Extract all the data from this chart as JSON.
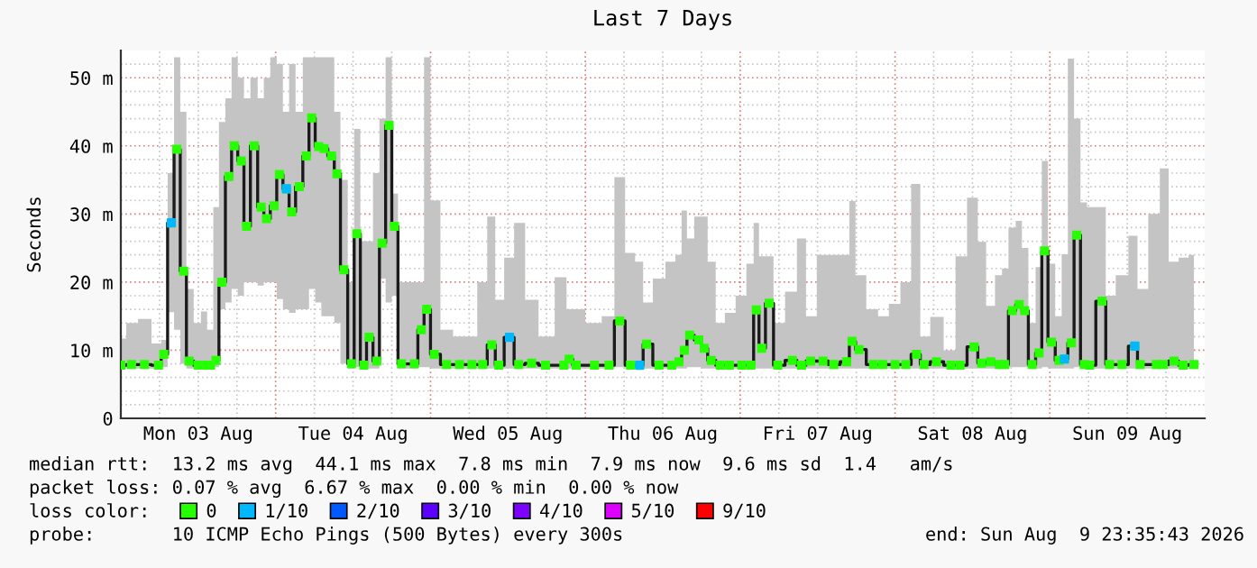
{
  "chart_data": {
    "type": "step",
    "title": "Last 7 Days",
    "ylabel": "Seconds",
    "x": [
      "2026-08-03T00:00",
      "2026-08-03T01:40",
      "2026-08-03T03:40",
      "2026-08-03T05:50",
      "2026-08-03T06:40",
      "2026-08-03T07:50",
      "2026-08-03T08:40",
      "2026-08-03T09:45",
      "2026-08-03T10:35",
      "2026-08-03T12:00",
      "2026-08-03T12:50",
      "2026-08-03T13:55",
      "2026-08-03T14:45",
      "2026-08-03T15:40",
      "2026-08-03T16:45",
      "2026-08-03T17:35",
      "2026-08-03T18:40",
      "2026-08-03T19:30",
      "2026-08-03T20:40",
      "2026-08-03T21:45",
      "2026-08-03T22:35",
      "2026-08-03T23:45",
      "2026-08-04T00:35",
      "2026-08-04T01:40",
      "2026-08-04T02:30",
      "2026-08-04T03:40",
      "2026-08-04T04:45",
      "2026-08-04T05:35",
      "2026-08-04T06:40",
      "2026-08-04T07:30",
      "2026-08-04T08:40",
      "2026-08-04T09:30",
      "2026-08-04T10:35",
      "2026-08-04T11:45",
      "2026-08-04T12:35",
      "2026-08-04T13:40",
      "2026-08-04T14:30",
      "2026-08-04T15:40",
      "2026-08-04T16:30",
      "2026-08-04T17:35",
      "2026-08-04T18:25",
      "2026-08-04T19:30",
      "2026-08-04T21:30",
      "2026-08-04T22:35",
      "2026-08-04T23:25",
      "2026-08-05T00:35",
      "2026-08-05T02:30",
      "2026-08-05T04:30",
      "2026-08-05T06:25",
      "2026-08-05T08:05",
      "2026-08-05T09:30",
      "2026-08-05T10:35",
      "2026-08-05T12:15",
      "2026-08-05T13:40",
      "2026-08-05T15:40",
      "2026-08-05T17:50",
      "2026-08-05T20:40",
      "2026-08-05T21:30",
      "2026-08-05T22:35",
      "2026-08-06T01:25",
      "2026-08-06T03:40",
      "2026-08-06T05:20",
      "2026-08-06T07:00",
      "2026-08-06T08:25",
      "2026-08-06T09:30",
      "2026-08-06T11:25",
      "2026-08-06T13:25",
      "2026-08-06T14:30",
      "2026-08-06T15:20",
      "2026-08-06T16:10",
      "2026-08-06T17:35",
      "2026-08-06T18:25",
      "2026-08-06T19:30",
      "2026-08-06T20:55",
      "2026-08-06T22:20",
      "2026-08-07T00:15",
      "2026-08-07T01:40",
      "2026-08-07T02:30",
      "2026-08-07T03:20",
      "2026-08-07T04:30",
      "2026-08-07T05:50",
      "2026-08-07T08:05",
      "2026-08-07T09:30",
      "2026-08-07T10:55",
      "2026-08-07T12:50",
      "2026-08-07T14:30",
      "2026-08-07T16:30",
      "2026-08-07T17:20",
      "2026-08-07T18:25",
      "2026-08-07T20:40",
      "2026-08-07T22:05",
      "2026-08-08T00:00",
      "2026-08-08T01:40",
      "2026-08-08T03:20",
      "2026-08-08T04:30",
      "2026-08-08T06:25",
      "2026-08-08T08:40",
      "2026-08-08T10:05",
      "2026-08-08T12:15",
      "2026-08-08T13:25",
      "2026-08-08T14:50",
      "2026-08-08T16:10",
      "2026-08-08T17:00",
      "2026-08-08T18:10",
      "2026-08-08T19:15",
      "2026-08-08T20:05",
      "2026-08-08T21:15",
      "2026-08-08T22:20",
      "2026-08-08T23:10",
      "2026-08-09T00:15",
      "2026-08-09T01:25",
      "2026-08-09T02:15",
      "2026-08-09T03:20",
      "2026-08-09T04:10",
      "2026-08-09T05:20",
      "2026-08-09T06:10",
      "2026-08-09T08:05",
      "2026-08-09T09:15",
      "2026-08-09T11:10",
      "2026-08-09T13:10",
      "2026-08-09T14:00",
      "2026-08-09T16:30",
      "2026-08-09T17:35",
      "2026-08-09T19:15",
      "2026-08-09T20:40",
      "2026-08-09T22:20"
    ],
    "series": [
      {
        "name": "0",
        "color": "#26ff00",
        "values": [
          7.8,
          7.9,
          7.9,
          7.8,
          9.4,
          28.7,
          39.5,
          21.6,
          8.4,
          7.8,
          7.8,
          7.8,
          8.5,
          20,
          35.5,
          40,
          37.8,
          28.2,
          40,
          31,
          29.3,
          31.2,
          35.8,
          33.7,
          30.3,
          34,
          38.5,
          44.1,
          39.9,
          39.6,
          38.5,
          35.9,
          21.8,
          8,
          27.1,
          7.8,
          11.9,
          8.4,
          25.7,
          43,
          28.2,
          8,
          8,
          13,
          16,
          9.4,
          7.9,
          7.9,
          7.9,
          7.9,
          10.8,
          7.8,
          11.9,
          7.9,
          8.1,
          7.8,
          7.8,
          8.7,
          7.8,
          7.8,
          7.8,
          14.3,
          7.8,
          7.8,
          10.9,
          7.8,
          7.8,
          8.3,
          10,
          12.2,
          11.5,
          10.3,
          8.5,
          7.8,
          7.8,
          7.8,
          7.8,
          15.9,
          10.3,
          16.9,
          7.8,
          8.5,
          7.8,
          8.4,
          8.4,
          7.9,
          8.3,
          11.3,
          10.1,
          7.9,
          7.9,
          7.9,
          7.9,
          9.4,
          7.9,
          8.3,
          7.8,
          7.8,
          10.5,
          8.1,
          8.3,
          7.9,
          7.9,
          15.8,
          16.7,
          15.8,
          7.9,
          9.6,
          24.6,
          11.2,
          8.5,
          8.7,
          11.1,
          26.9,
          7.9,
          7.8,
          17.2,
          7.9,
          7.9,
          10.6,
          7.9,
          7.9,
          7.9,
          8.4,
          7.8,
          7.9
        ],
        "lower": [
          7.3,
          7.3,
          7.3,
          7.3,
          7.5,
          15.6,
          13,
          8,
          7.3,
          7.3,
          7.3,
          7.3,
          7.5,
          16,
          17,
          19,
          18,
          20,
          20,
          19.5,
          20,
          20,
          17.5,
          16,
          15.5,
          16,
          16,
          19,
          17,
          15,
          15,
          14,
          8,
          7.3,
          7.5,
          7.3,
          7.3,
          7.3,
          20.5,
          17,
          18,
          7.3,
          7.3,
          7.5,
          7.5,
          7.3,
          7.3,
          7.3,
          7.3,
          7.3,
          7.3,
          7.3,
          7.3,
          7.3,
          7.3,
          7.3,
          7.3,
          7.3,
          7.3,
          7.3,
          7.3,
          7.5,
          7.3,
          7.3,
          7.3,
          7.3,
          7.3,
          7.3,
          7.3,
          7.5,
          7.5,
          7.3,
          7.3,
          7.3,
          7.3,
          7.3,
          7.3,
          7.3,
          7.3,
          7.3,
          7.3,
          7.3,
          7.3,
          7.3,
          7.3,
          7.3,
          7.3,
          7.3,
          7.3,
          7.3,
          7.3,
          7.3,
          7.3,
          7.3,
          7.3,
          7.3,
          7.3,
          7.3,
          7.3,
          7.3,
          7.3,
          7.3,
          7.3,
          7.5,
          7.5,
          7.5,
          7.3,
          7.3,
          7.5,
          7.3,
          7.3,
          7.3,
          7.3,
          7.5,
          7.3,
          7.3,
          7.3,
          7.3,
          7.3,
          7.3,
          7.3,
          7.3,
          7.3,
          7.3,
          7.3,
          7.3
        ],
        "upper": [
          11.7,
          14,
          14.6,
          11,
          11.5,
          36,
          53,
          45,
          19,
          14,
          15.7,
          13,
          31,
          43.5,
          47,
          53,
          50,
          47,
          50,
          47,
          50,
          53,
          52,
          45,
          52,
          45,
          53,
          53,
          53,
          53,
          53,
          45,
          35,
          20,
          42.5,
          26,
          26,
          36,
          44,
          53,
          33,
          20,
          20,
          20,
          53,
          32,
          13,
          12,
          12,
          20,
          29.6,
          17.4,
          23.6,
          28.7,
          17.4,
          12,
          20.7,
          16,
          16,
          14,
          15,
          35.4,
          24.3,
          23,
          17,
          20.5,
          23,
          24,
          30.5,
          26.4,
          29.6,
          29.6,
          23,
          14,
          15.5,
          18,
          22.7,
          28.7,
          23.8,
          23.8,
          14,
          18.6,
          26.4,
          15,
          24,
          24,
          24,
          31.9,
          21,
          16,
          15,
          16.8,
          20,
          34.4,
          12,
          14.9,
          10,
          23.8,
          32.4,
          25.9,
          16.5,
          21,
          22,
          28,
          29,
          25,
          14,
          22.2,
          37.8,
          22.7,
          15,
          24.1,
          52.8,
          44,
          31.7,
          31,
          31,
          18,
          21,
          26.8,
          19,
          30,
          36.7,
          23,
          23.6,
          24
        ]
      },
      {
        "name": "1/10",
        "type": "scatter",
        "color": "#00b8ff",
        "x": [
          "2026-08-03T07:50",
          "2026-08-04T01:40",
          "2026-08-05T12:15",
          "2026-08-06T08:25",
          "2026-08-09T02:15",
          "2026-08-09T13:10"
        ],
        "values": [
          28.7,
          33.7,
          11.9,
          7.8,
          8.7,
          10.6
        ]
      },
      {
        "name": "2/10",
        "type": "scatter",
        "color": "#0059ff",
        "values": [
          null,
          null,
          null,
          null,
          null,
          null,
          null,
          null,
          null,
          null,
          null,
          null,
          null,
          null,
          null,
          null,
          null,
          null,
          null,
          null,
          null,
          null,
          null,
          null,
          null,
          null,
          null,
          null,
          null,
          null,
          null,
          null,
          null,
          null,
          null,
          null,
          null,
          null,
          null,
          null,
          null,
          null,
          null,
          null,
          null,
          null,
          null,
          null,
          null,
          null,
          null,
          null,
          null,
          null,
          null,
          null,
          null,
          null,
          null,
          null,
          null,
          null,
          null,
          null,
          null,
          null,
          null,
          null,
          null,
          null,
          null,
          null,
          null,
          null,
          null,
          null,
          null,
          null,
          null,
          null,
          null,
          null,
          null,
          null,
          null,
          null,
          null,
          null,
          null,
          null,
          null,
          null,
          null,
          null,
          null,
          null,
          null,
          null,
          null,
          null,
          null,
          null,
          null,
          null,
          null,
          null,
          null,
          null,
          null,
          null,
          null,
          null,
          null,
          null,
          null,
          null,
          null,
          null,
          null,
          null,
          null,
          null,
          null,
          null,
          null,
          null
        ]
      },
      {
        "name": "3/10",
        "type": "scatter",
        "color": "#5e00ff",
        "values": [
          null,
          null,
          null,
          null,
          null,
          null,
          null,
          null,
          null,
          null,
          null,
          null,
          null,
          null,
          null,
          null,
          null,
          null,
          null,
          null,
          null,
          null,
          null,
          null,
          null,
          null,
          null,
          null,
          null,
          null,
          null,
          null,
          null,
          null,
          null,
          null,
          null,
          null,
          null,
          null,
          null,
          null,
          null,
          null,
          null,
          null,
          null,
          null,
          null,
          null,
          null,
          null,
          null,
          null,
          null,
          null,
          null,
          null,
          null,
          null,
          null,
          null,
          null,
          null,
          null,
          null,
          null,
          null,
          null,
          null,
          null,
          null,
          null,
          null,
          null,
          null,
          null,
          null,
          null,
          null,
          null,
          null,
          null,
          null,
          null,
          null,
          null,
          null,
          null,
          null,
          null,
          null,
          null,
          null,
          null,
          null,
          null,
          null,
          null,
          null,
          null,
          null,
          null,
          null,
          null,
          null,
          null,
          null,
          null,
          null,
          null,
          null,
          null,
          null,
          null,
          null,
          null,
          null,
          null,
          null,
          null,
          null,
          null,
          null,
          null,
          null
        ]
      },
      {
        "name": "4/10",
        "type": "scatter",
        "color": "#7e00ff",
        "values": [
          null,
          null,
          null,
          null,
          null,
          null,
          null,
          null,
          null,
          null,
          null,
          null,
          null,
          null,
          null,
          null,
          null,
          null,
          null,
          null,
          null,
          null,
          null,
          null,
          null,
          null,
          null,
          null,
          null,
          null,
          null,
          null,
          null,
          null,
          null,
          null,
          null,
          null,
          null,
          null,
          null,
          null,
          null,
          null,
          null,
          null,
          null,
          null,
          null,
          null,
          null,
          null,
          null,
          null,
          null,
          null,
          null,
          null,
          null,
          null,
          null,
          null,
          null,
          null,
          null,
          null,
          null,
          null,
          null,
          null,
          null,
          null,
          null,
          null,
          null,
          null,
          null,
          null,
          null,
          null,
          null,
          null,
          null,
          null,
          null,
          null,
          null,
          null,
          null,
          null,
          null,
          null,
          null,
          null,
          null,
          null,
          null,
          null,
          null,
          null,
          null,
          null,
          null,
          null,
          null,
          null,
          null,
          null,
          null,
          null,
          null,
          null,
          null,
          null,
          null,
          null,
          null,
          null,
          null,
          null,
          null,
          null,
          null,
          null,
          null,
          null
        ]
      },
      {
        "name": "5/10",
        "type": "scatter",
        "color": "#dd00ff",
        "values": [
          null,
          null,
          null,
          null,
          null,
          null,
          null,
          null,
          null,
          null,
          null,
          null,
          null,
          null,
          null,
          null,
          null,
          null,
          null,
          null,
          null,
          null,
          null,
          null,
          null,
          null,
          null,
          null,
          null,
          null,
          null,
          null,
          null,
          null,
          null,
          null,
          null,
          null,
          null,
          null,
          null,
          null,
          null,
          null,
          null,
          null,
          null,
          null,
          null,
          null,
          null,
          null,
          null,
          null,
          null,
          null,
          null,
          null,
          null,
          null,
          null,
          null,
          null,
          null,
          null,
          null,
          null,
          null,
          null,
          null,
          null,
          null,
          null,
          null,
          null,
          null,
          null,
          null,
          null,
          null,
          null,
          null,
          null,
          null,
          null,
          null,
          null,
          null,
          null,
          null,
          null,
          null,
          null,
          null,
          null,
          null,
          null,
          null,
          null,
          null,
          null,
          null,
          null,
          null,
          null,
          null,
          null,
          null,
          null,
          null,
          null,
          null,
          null,
          null,
          null,
          null,
          null,
          null,
          null,
          null,
          null,
          null,
          null,
          null,
          null,
          null
        ]
      },
      {
        "name": "9/10",
        "type": "scatter",
        "color": "#ff0000",
        "values": [
          null,
          null,
          null,
          null,
          null,
          null,
          null,
          null,
          null,
          null,
          null,
          null,
          null,
          null,
          null,
          null,
          null,
          null,
          null,
          null,
          null,
          null,
          null,
          null,
          null,
          null,
          null,
          null,
          null,
          null,
          null,
          null,
          null,
          null,
          null,
          null,
          null,
          null,
          null,
          null,
          null,
          null,
          null,
          null,
          null,
          null,
          null,
          null,
          null,
          null,
          null,
          null,
          null,
          null,
          null,
          null,
          null,
          null,
          null,
          null,
          null,
          null,
          null,
          null,
          null,
          null,
          null,
          null,
          null,
          null,
          null,
          null,
          null,
          null,
          null,
          null,
          null,
          null,
          null,
          null,
          null,
          null,
          null,
          null,
          null,
          null,
          null,
          null,
          null,
          null,
          null,
          null,
          null,
          null,
          null,
          null,
          null,
          null,
          null,
          null,
          null,
          null,
          null,
          null,
          null,
          null,
          null,
          null,
          null,
          null,
          null,
          null,
          null,
          null,
          null,
          null,
          null,
          null,
          null,
          null,
          null,
          null,
          null,
          null,
          null,
          null
        ]
      }
    ],
    "marker": "square",
    "xlim": [
      "2026-08-03T00:00",
      "2026-08-10T00:00"
    ],
    "xticks": [
      {
        "value": "2026-08-03T06:00",
        "label": null
      },
      {
        "value": "2026-08-03T12:00",
        "label": "Mon 03 Aug"
      },
      {
        "value": "2026-08-03T18:00",
        "label": null
      },
      {
        "value": "2026-08-04T00:00",
        "label": null
      },
      {
        "value": "2026-08-04T06:00",
        "label": null
      },
      {
        "value": "2026-08-04T12:00",
        "label": "Tue 04 Aug"
      },
      {
        "value": "2026-08-04T18:00",
        "label": null
      },
      {
        "value": "2026-08-05T00:00",
        "label": null
      },
      {
        "value": "2026-08-05T06:00",
        "label": null
      },
      {
        "value": "2026-08-05T12:00",
        "label": "Wed 05 Aug"
      },
      {
        "value": "2026-08-05T18:00",
        "label": null
      },
      {
        "value": "2026-08-06T00:00",
        "label": null
      },
      {
        "value": "2026-08-06T06:00",
        "label": null
      },
      {
        "value": "2026-08-06T12:00",
        "label": "Thu 06 Aug"
      },
      {
        "value": "2026-08-06T18:00",
        "label": null
      },
      {
        "value": "2026-08-07T00:00",
        "label": null
      },
      {
        "value": "2026-08-07T06:00",
        "label": null
      },
      {
        "value": "2026-08-07T12:00",
        "label": "Fri 07 Aug"
      },
      {
        "value": "2026-08-07T18:00",
        "label": null
      },
      {
        "value": "2026-08-08T00:00",
        "label": null
      },
      {
        "value": "2026-08-08T06:00",
        "label": null
      },
      {
        "value": "2026-08-08T12:00",
        "label": "Sat 08 Aug"
      },
      {
        "value": "2026-08-08T18:00",
        "label": null
      },
      {
        "value": "2026-08-09T00:00",
        "label": null
      },
      {
        "value": "2026-08-09T06:00",
        "label": null
      },
      {
        "value": "2026-08-09T12:00",
        "label": "Sun 09 Aug"
      },
      {
        "value": "2026-08-09T18:00",
        "label": null
      }
    ],
    "ylim": [
      0,
      54
    ],
    "yticks": [
      0,
      {
        "value": 2,
        "label": null
      },
      {
        "value": 4,
        "label": null
      },
      {
        "value": 6,
        "label": null
      },
      {
        "value": 8,
        "label": null
      },
      {
        "value": 10,
        "label": "10 m"
      },
      {
        "value": 12,
        "label": null
      },
      {
        "value": 14,
        "label": null
      },
      {
        "value": 16,
        "label": null
      },
      {
        "value": 18,
        "label": null
      },
      {
        "value": 20,
        "label": "20 m"
      },
      {
        "value": 22,
        "label": null
      },
      {
        "value": 24,
        "label": null
      },
      {
        "value": 26,
        "label": null
      },
      {
        "value": 28,
        "label": null
      },
      {
        "value": 30,
        "label": "30 m"
      },
      {
        "value": 32,
        "label": null
      },
      {
        "value": 34,
        "label": null
      },
      {
        "value": 36,
        "label": null
      },
      {
        "value": 38,
        "label": null
      },
      {
        "value": 40,
        "label": "40 m"
      },
      {
        "value": 42,
        "label": null
      },
      {
        "value": 44,
        "label": null
      },
      {
        "value": 46,
        "label": null
      },
      {
        "value": 48,
        "label": null
      },
      {
        "value": 50,
        "label": "50 m"
      },
      {
        "value": 52,
        "label": null
      }
    ],
    "grid": true,
    "legend": "bottom",
    "legend_title": "loss color:",
    "annotations": [
      "median rtt:  13.2 ms avg  44.1 ms max  7.8 ms min  7.9 ms now  9.6 ms sd  1.4   am/s",
      "packet loss: 0.07 % avg  6.67 % max  0.00 % min  0.00 % now",
      "probe:       10 ICMP Echo Pings (500 Bytes) every 300s",
      "end: Sun Aug  9 23:35:43 2026"
    ]
  }
}
